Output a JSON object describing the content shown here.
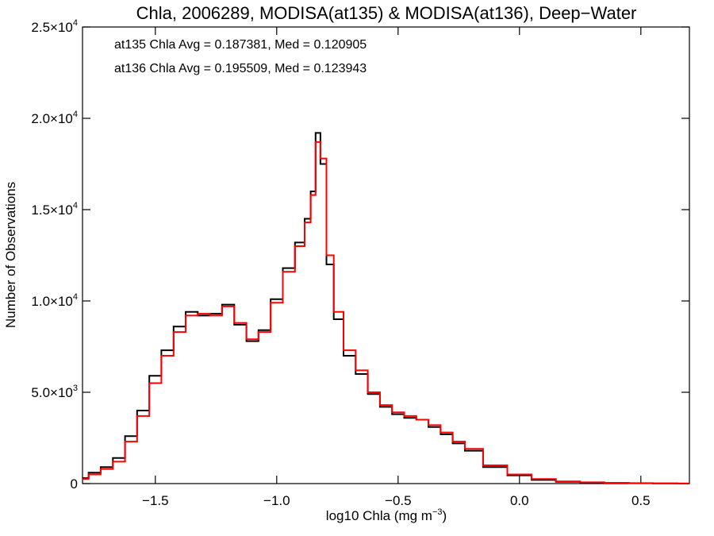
{
  "chart_data": {
    "type": "line",
    "title": "Chla, 2006289, MODISA(at135) & MODISA(at136), Deep−Water",
    "xlabel": "log10 Chla (mg m",
    "xlabel_sup": "−3",
    "xlabel_end": ")",
    "ylabel": "Number of Observations",
    "xlim": [
      -1.8,
      0.7
    ],
    "ylim": [
      0,
      25000
    ],
    "xticks": [
      {
        "value": -1.5,
        "label": "−1.5"
      },
      {
        "value": -1.0,
        "label": "−1.0"
      },
      {
        "value": -0.5,
        "label": "−0.5"
      },
      {
        "value": 0.0,
        "label": "0.0"
      },
      {
        "value": 0.5,
        "label": "0.5"
      }
    ],
    "yticks": [
      {
        "value": 0,
        "mant": "0",
        "exp": ""
      },
      {
        "value": 5000,
        "mant": "5.0×10",
        "exp": "3"
      },
      {
        "value": 10000,
        "mant": "1.0×10",
        "exp": "4"
      },
      {
        "value": 15000,
        "mant": "1.5×10",
        "exp": "4"
      },
      {
        "value": 20000,
        "mant": "2.0×10",
        "exp": "4"
      },
      {
        "value": 25000,
        "mant": "2.5×10",
        "exp": "4"
      }
    ],
    "annotations": [
      {
        "text": "at135 Chla Avg = 0.187381, Med = 0.120905",
        "color": "#000000"
      },
      {
        "text": "at136 Chla Avg = 0.195509, Med = 0.123943",
        "color": "#ff0000"
      }
    ],
    "style": {
      "line": "step",
      "grid": false,
      "legend": "none"
    },
    "series": [
      {
        "color": "#000000",
        "x": [
          -1.8,
          -1.75,
          -1.7,
          -1.65,
          -1.6,
          -1.55,
          -1.5,
          -1.45,
          -1.4,
          -1.35,
          -1.3,
          -1.25,
          -1.2,
          -1.15,
          -1.1,
          -1.05,
          -1.0,
          -0.95,
          -0.9,
          -0.87,
          -0.85,
          -0.83,
          -0.81,
          -0.78,
          -0.75,
          -0.7,
          -0.65,
          -0.6,
          -0.55,
          -0.5,
          -0.45,
          -0.4,
          -0.35,
          -0.3,
          -0.25,
          -0.2,
          -0.1,
          0.0,
          0.1,
          0.2,
          0.3,
          0.4,
          0.5,
          0.6,
          0.7
        ],
        "values": [
          300,
          600,
          900,
          1400,
          2600,
          4000,
          5900,
          7300,
          8600,
          9400,
          9200,
          9300,
          9800,
          8700,
          7800,
          8400,
          10100,
          11800,
          13200,
          14500,
          16000,
          19200,
          17500,
          12000,
          9000,
          7000,
          6000,
          4900,
          4200,
          3800,
          3600,
          3500,
          3100,
          2700,
          2200,
          1800,
          900,
          450,
          200,
          100,
          60,
          40,
          20,
          10,
          5
        ]
      },
      {
        "color": "#ff0000",
        "x": [
          -1.8,
          -1.75,
          -1.7,
          -1.65,
          -1.6,
          -1.55,
          -1.5,
          -1.45,
          -1.4,
          -1.35,
          -1.3,
          -1.25,
          -1.2,
          -1.15,
          -1.1,
          -1.05,
          -1.0,
          -0.95,
          -0.9,
          -0.87,
          -0.85,
          -0.83,
          -0.81,
          -0.78,
          -0.75,
          -0.7,
          -0.65,
          -0.6,
          -0.55,
          -0.5,
          -0.45,
          -0.4,
          -0.35,
          -0.3,
          -0.25,
          -0.2,
          -0.1,
          0.0,
          0.1,
          0.2,
          0.3,
          0.4,
          0.5,
          0.6,
          0.7
        ],
        "values": [
          250,
          500,
          800,
          1200,
          2300,
          3700,
          5500,
          7000,
          8300,
          9200,
          9300,
          9200,
          9700,
          8800,
          7900,
          8300,
          9900,
          11600,
          13000,
          14300,
          15800,
          18700,
          17800,
          12500,
          9400,
          7300,
          6200,
          5000,
          4300,
          3900,
          3700,
          3500,
          3200,
          2800,
          2300,
          1900,
          1000,
          500,
          250,
          120,
          70,
          45,
          25,
          12,
          6
        ]
      }
    ]
  }
}
